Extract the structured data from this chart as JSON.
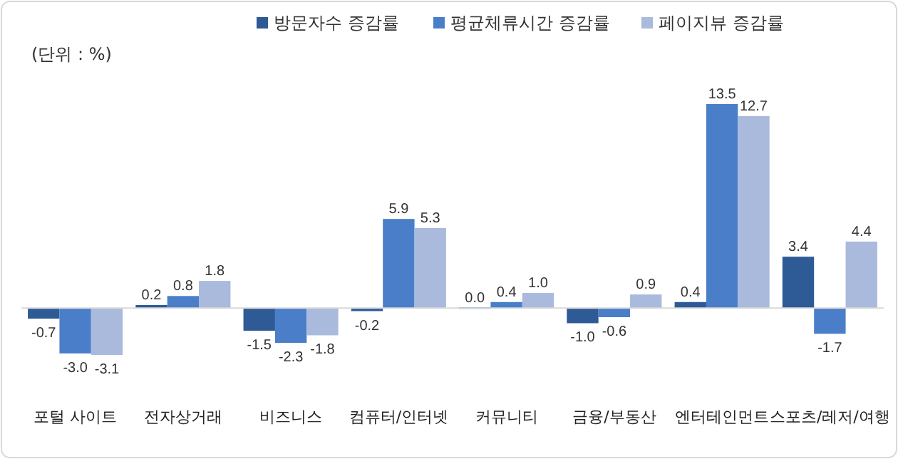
{
  "chart_data": {
    "type": "bar",
    "annotations": [
      "(단위 : %)"
    ],
    "categories": [
      "포털 사이트",
      "전자상거래",
      "비즈니스",
      "컴퓨터/인터넷",
      "커뮤니티",
      "금융/부동산",
      "엔터테인먼트",
      "스포츠/레저/여행"
    ],
    "series": [
      {
        "name": "방문자수 증감률",
        "color": "#2e5a96",
        "values": [
          -0.7,
          0.2,
          -1.5,
          -0.2,
          0.0,
          -1.0,
          0.4,
          3.4
        ],
        "value_labels": [
          "-0.7",
          "0.2",
          "-1.5",
          "-0.2",
          "0.0",
          "-1.0",
          "0.4",
          "3.4"
        ]
      },
      {
        "name": "평균체류시간 증감률",
        "color": "#4a7ec9",
        "values": [
          -3.0,
          0.8,
          -2.3,
          5.9,
          0.4,
          -0.6,
          13.5,
          -1.7
        ],
        "value_labels": [
          "-3.0",
          "0.8",
          "-2.3",
          "5.9",
          "0.4",
          "-0.6",
          "13.5",
          "-1.7"
        ]
      },
      {
        "name": "페이지뷰 증감률",
        "color": "#a9badc",
        "values": [
          -3.1,
          1.8,
          -1.8,
          5.3,
          1.0,
          0.9,
          12.7,
          4.4
        ],
        "value_labels": [
          "-3.1",
          "1.8",
          "-1.8",
          "5.3",
          "1.0",
          "0.9",
          "12.7",
          "4.4"
        ]
      }
    ],
    "legend": "top"
  }
}
